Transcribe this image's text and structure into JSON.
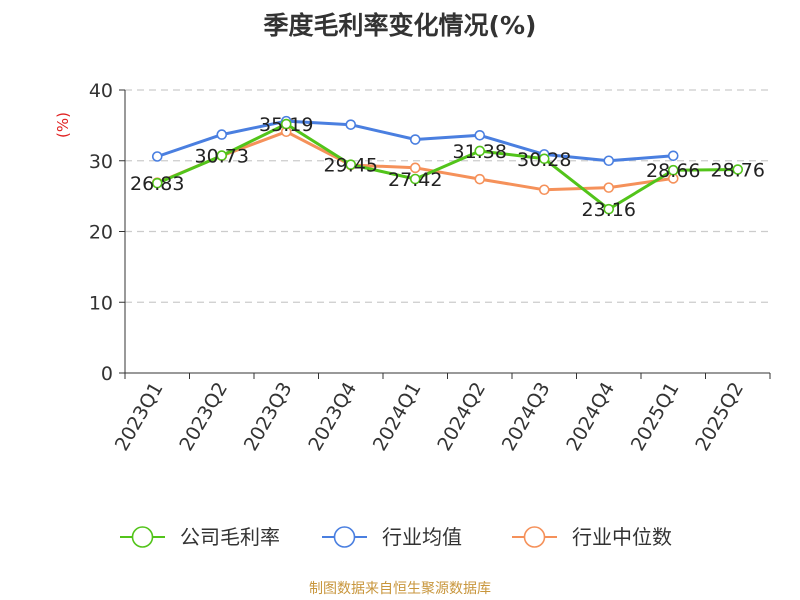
{
  "chart_data": {
    "type": "line",
    "title": "季度毛利率变化情况(%)",
    "ylabel": "(%)",
    "xlabel": "",
    "ylim": [
      0,
      40
    ],
    "yticks": [
      0,
      10,
      20,
      30,
      40
    ],
    "grid": true,
    "legend_position": "bottom",
    "categories": [
      "2023Q1",
      "2023Q2",
      "2023Q3",
      "2023Q4",
      "2024Q1",
      "2024Q2",
      "2024Q3",
      "2024Q4",
      "2025Q1",
      "2025Q2"
    ],
    "series": [
      {
        "name": "公司毛利率",
        "color": "#52c41a",
        "labeled": true,
        "values": [
          26.83,
          30.73,
          35.19,
          29.45,
          27.42,
          31.38,
          30.28,
          23.16,
          28.66,
          28.76
        ]
      },
      {
        "name": "行业均值",
        "color": "#4a7fe0",
        "labeled": false,
        "values": [
          30.6,
          33.7,
          35.6,
          35.1,
          33.0,
          33.6,
          30.9,
          30.0,
          30.7,
          null
        ]
      },
      {
        "name": "行业中位数",
        "color": "#f5915a",
        "labeled": false,
        "values": [
          26.9,
          30.7,
          34.1,
          29.4,
          29.0,
          27.4,
          25.9,
          26.2,
          27.5,
          null
        ]
      }
    ]
  },
  "footer": {
    "source": "制图数据来自恒生聚源数据库"
  }
}
